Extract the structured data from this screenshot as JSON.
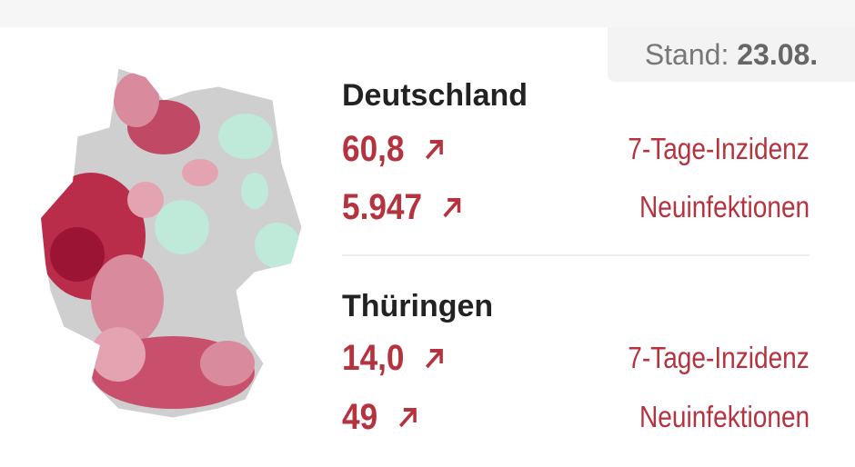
{
  "stand": {
    "label": "Stand:",
    "date": "23.08."
  },
  "sections": [
    {
      "title": "Deutschland",
      "rows": [
        {
          "value": "60,8",
          "label": "7-Tage-Inzidenz"
        },
        {
          "value": "5.947",
          "label": "Neuinfektionen"
        }
      ]
    },
    {
      "title": "Thüringen",
      "rows": [
        {
          "value": "14,0",
          "label": "7-Tage-Inzidenz"
        },
        {
          "value": "49",
          "label": "Neuinfektionen"
        }
      ]
    }
  ]
}
